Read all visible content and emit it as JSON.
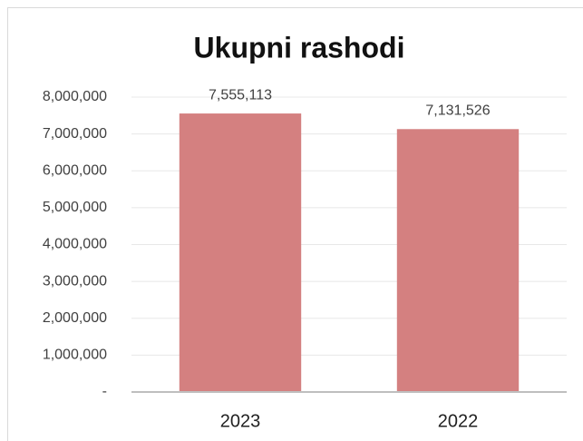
{
  "chart_data": {
    "type": "bar",
    "title": "Ukupni rashodi",
    "categories": [
      "2023",
      "2022"
    ],
    "values": [
      7555113,
      7131526
    ],
    "value_labels": [
      "7,555,113",
      "7,131,526"
    ],
    "color": "#d48080",
    "ylim": [
      0,
      8000000
    ],
    "yticks": [
      {
        "value": 0,
        "label": "-"
      },
      {
        "value": 1000000,
        "label": "1,000,000"
      },
      {
        "value": 2000000,
        "label": "2,000,000"
      },
      {
        "value": 3000000,
        "label": "3,000,000"
      },
      {
        "value": 4000000,
        "label": "4,000,000"
      },
      {
        "value": 5000000,
        "label": "5,000,000"
      },
      {
        "value": 6000000,
        "label": "6,000,000"
      },
      {
        "value": 7000000,
        "label": "7,000,000"
      },
      {
        "value": 8000000,
        "label": "8,000,000"
      }
    ],
    "grid": true
  }
}
